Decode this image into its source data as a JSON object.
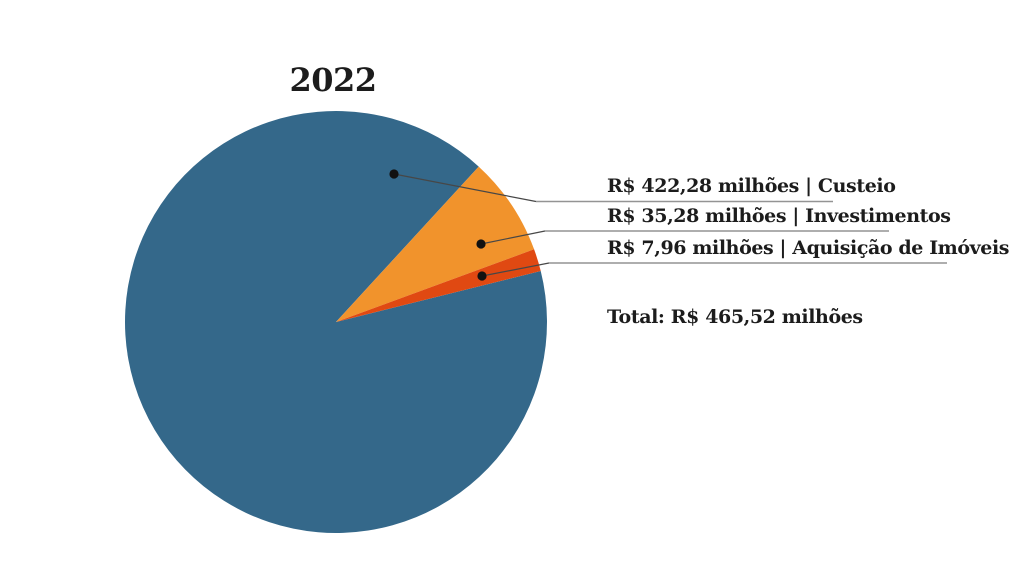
{
  "chart_data": {
    "type": "pie",
    "title": "2022",
    "slices": [
      {
        "label": "Custeio",
        "value": 422.28,
        "display": "R$ 422,28 milhões | Custeio",
        "color": "#34688A"
      },
      {
        "label": "Investimentos",
        "value": 35.28,
        "display": "R$ 35,28 milhões | Investimentos",
        "color": "#F1932C"
      },
      {
        "label": "Aquisição de Imóveis",
        "value": 7.96,
        "display": "R$ 7,96 milhões | Aquisição de Imóveis",
        "color": "#E04912"
      }
    ],
    "total_value": 465.52,
    "total_label": "Total: R$ 465,52 milhões",
    "unit": "R$ milhões",
    "start_angle_deg": 14,
    "direction": "clockwise",
    "legend_position": "right",
    "grid": false
  },
  "colors": {
    "background": "#ffffff",
    "text": "#1c1c1c",
    "leader_line": "#474747",
    "underline": "#949494",
    "callout_dot": "#111111"
  }
}
